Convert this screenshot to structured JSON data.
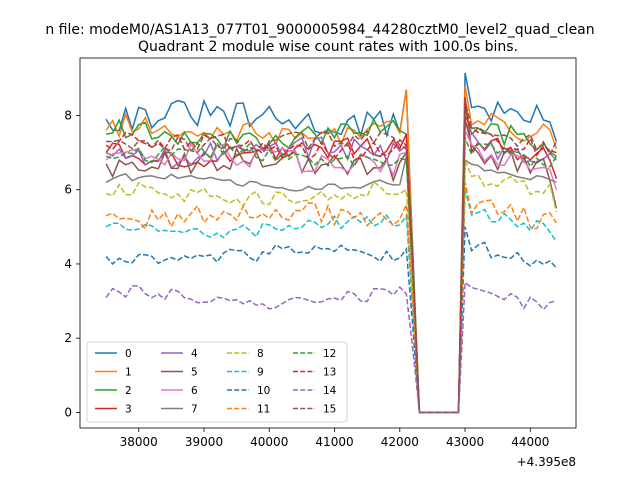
{
  "figure": {
    "suptitle": "n file: modeM0/AS1A13_077T01_9000005984_44280cztM0_level2_quad_clean",
    "offset_label": "+4.395e8"
  },
  "chart_data": {
    "type": "line",
    "title": "Quadrant 2 module wise count rates with 100.0s bins.",
    "xlabel": "",
    "ylabel": "",
    "xlim": [
      37100,
      44700
    ],
    "ylim": [
      -0.42,
      9.55
    ],
    "x_offset": 439500000,
    "xticks": [
      38000,
      39000,
      40000,
      41000,
      42000,
      43000,
      44000
    ],
    "xtick_labels": [
      "38000",
      "39000",
      "40000",
      "41000",
      "42000",
      "43000",
      "44000"
    ],
    "yticks": [
      0,
      2,
      4,
      6,
      8
    ],
    "ytick_labels": [
      "0",
      "2",
      "4",
      "6",
      "8"
    ],
    "grid": false,
    "legend": {
      "position": "lower-left",
      "columns": 4
    },
    "x_start": 37500,
    "x_step": 100,
    "gap": {
      "drop_start": 42200,
      "zero_from": 42300,
      "zero_to": 42900,
      "rise_end": 43000
    },
    "x_end": 44400,
    "series": [
      {
        "name": "0",
        "color": "#1f77b4",
        "dash": "solid",
        "level": 7.9,
        "level_after": 8.3,
        "noise": 0.38,
        "peak_start": 8.7,
        "peak_end": 9.15,
        "last": 7.3
      },
      {
        "name": "1",
        "color": "#ff7f0e",
        "dash": "solid",
        "level": 7.6,
        "level_after": 7.9,
        "noise": 0.3,
        "peak_start": 8.7,
        "peak_end": 8.8,
        "last": 7.1
      },
      {
        "name": "2",
        "color": "#2ca02c",
        "dash": "solid",
        "level": 7.5,
        "level_after": 7.7,
        "noise": 0.28,
        "peak_start": 7.5,
        "peak_end": 8.2,
        "last": 6.9
      },
      {
        "name": "3",
        "color": "#d62728",
        "dash": "solid",
        "level": 7.0,
        "level_after": 7.3,
        "noise": 0.28,
        "peak_start": 7.5,
        "peak_end": 8.5,
        "last": 6.3
      },
      {
        "name": "4",
        "color": "#9467bd",
        "dash": "solid",
        "level": 7.0,
        "level_after": 7.3,
        "noise": 0.3,
        "peak_start": 7.2,
        "peak_end": 7.8,
        "last": 6.8
      },
      {
        "name": "5",
        "color": "#8c564b",
        "dash": "solid",
        "level": 6.7,
        "level_after": 7.0,
        "noise": 0.32,
        "peak_start": 7.0,
        "peak_end": 7.9,
        "last": 5.5
      },
      {
        "name": "6",
        "color": "#e377c2",
        "dash": "solid",
        "level": 6.8,
        "level_after": 7.1,
        "noise": 0.32,
        "peak_start": 7.0,
        "peak_end": 7.6,
        "last": 6.0
      },
      {
        "name": "7",
        "color": "#7f7f7f",
        "dash": "solid",
        "level": 6.2,
        "level_after": 6.7,
        "noise": 0.1,
        "peak_start": 6.9,
        "peak_end": 6.8,
        "last": 6.2
      },
      {
        "name": "8",
        "color": "#bcbd22",
        "dash": "dashed",
        "level": 5.9,
        "level_after": 6.4,
        "noise": 0.22,
        "peak_start": 6.0,
        "peak_end": 6.8,
        "last": 5.4
      },
      {
        "name": "9",
        "color": "#17becf",
        "dash": "dashed",
        "level": 5.0,
        "level_after": 5.4,
        "noise": 0.18,
        "peak_start": 5.3,
        "peak_end": 6.0,
        "last": 4.6
      },
      {
        "name": "10",
        "color": "#1f77b4",
        "dash": "dashed",
        "level": 4.2,
        "level_after": 4.5,
        "noise": 0.22,
        "peak_start": 4.4,
        "peak_end": 5.0,
        "last": 3.9
      },
      {
        "name": "11",
        "color": "#ff7f0e",
        "dash": "dashed",
        "level": 5.3,
        "level_after": 5.6,
        "noise": 0.28,
        "peak_start": 5.6,
        "peak_end": 6.2,
        "last": 5.1
      },
      {
        "name": "12",
        "color": "#2ca02c",
        "dash": "dashed",
        "level": 6.9,
        "level_after": 7.2,
        "noise": 0.22,
        "peak_start": 6.8,
        "peak_end": 7.4,
        "last": 6.9
      },
      {
        "name": "13",
        "color": "#d62728",
        "dash": "dashed",
        "level": 7.2,
        "level_after": 7.5,
        "noise": 0.25,
        "peak_start": 7.2,
        "peak_end": 8.0,
        "last": 7.0
      },
      {
        "name": "14",
        "color": "#9467bd",
        "dash": "dashed",
        "level": 3.1,
        "level_after": 3.3,
        "noise": 0.18,
        "peak_start": 3.2,
        "peak_end": 3.5,
        "last": 3.0
      },
      {
        "name": "15",
        "color": "#8c564b",
        "dash": "dashed",
        "level": 7.3,
        "level_after": 7.6,
        "noise": 0.28,
        "peak_start": 7.1,
        "peak_end": 8.4,
        "last": 7.3
      }
    ]
  }
}
